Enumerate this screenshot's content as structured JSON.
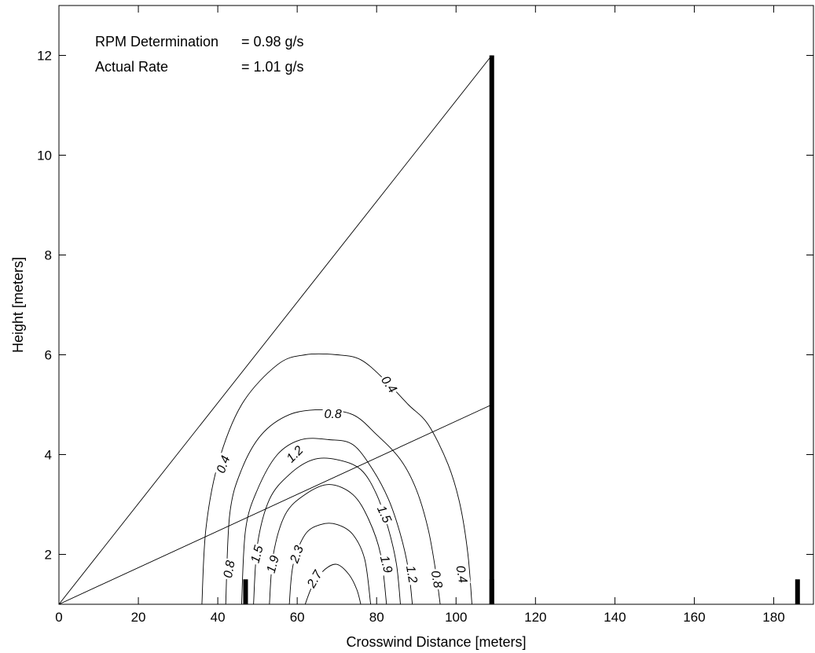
{
  "chart_data": {
    "type": "contour",
    "xlabel": "Crosswind Distance [meters]",
    "ylabel": "Height [meters]",
    "xlim": [
      0,
      190
    ],
    "ylim": [
      1,
      13
    ],
    "xticks": [
      0,
      20,
      40,
      60,
      80,
      100,
      120,
      140,
      160,
      180
    ],
    "yticks": [
      2,
      4,
      6,
      8,
      10,
      12
    ],
    "grid": false,
    "annotations": {
      "line1_label": "RPM Determination",
      "line1_value": "= 0.98 g/s",
      "line2_label": "Actual Rate",
      "line2_value": "= 1.01 g/s"
    },
    "beam_lines": [
      {
        "x": [
          0,
          109
        ],
        "y": [
          1,
          12
        ]
      },
      {
        "x": [
          0,
          109
        ],
        "y": [
          1,
          5
        ]
      }
    ],
    "towers": [
      {
        "x": 109,
        "y": [
          1,
          12
        ]
      },
      {
        "x": 47,
        "y": [
          1,
          1.5
        ]
      },
      {
        "x": 109,
        "y": [
          1,
          1.5
        ]
      },
      {
        "x": 186,
        "y": [
          1,
          1.5
        ]
      }
    ],
    "contours": [
      {
        "level": 0.4,
        "points": [
          [
            36,
            1
          ],
          [
            37,
            2.5
          ],
          [
            40,
            3.8
          ],
          [
            46,
            5.0
          ],
          [
            55,
            5.8
          ],
          [
            62,
            6.0
          ],
          [
            70,
            6.0
          ],
          [
            76,
            5.9
          ],
          [
            82,
            5.5
          ],
          [
            88,
            5.0
          ],
          [
            93,
            4.6
          ],
          [
            98,
            3.8
          ],
          [
            101,
            3.0
          ],
          [
            103,
            2.0
          ],
          [
            104,
            1
          ]
        ],
        "labels": [
          {
            "text": "0.4",
            "x": 41.5,
            "y": 3.8,
            "angle": -70
          },
          {
            "text": "0.4",
            "x": 83,
            "y": 5.4,
            "angle": 55
          },
          {
            "text": "0.4",
            "x": 101.3,
            "y": 1.6,
            "angle": 80
          }
        ]
      },
      {
        "level": 0.8,
        "points": [
          [
            42,
            1
          ],
          [
            43,
            2.8
          ],
          [
            46,
            3.7
          ],
          [
            51,
            4.4
          ],
          [
            58,
            4.8
          ],
          [
            66,
            4.9
          ],
          [
            74,
            4.8
          ],
          [
            80,
            4.4
          ],
          [
            86,
            3.9
          ],
          [
            90,
            3.3
          ],
          [
            93,
            2.5
          ],
          [
            95,
            1.6
          ],
          [
            96,
            1
          ]
        ],
        "labels": [
          {
            "text": "0.8",
            "x": 43.0,
            "y": 1.7,
            "angle": -80
          },
          {
            "text": "0.8",
            "x": 69,
            "y": 4.8,
            "angle": 0
          },
          {
            "text": "0.8",
            "x": 95.0,
            "y": 1.5,
            "angle": 80
          }
        ]
      },
      {
        "level": 1.2,
        "points": [
          [
            46,
            1
          ],
          [
            47,
            2.5
          ],
          [
            50,
            3.3
          ],
          [
            55,
            4.0
          ],
          [
            61,
            4.3
          ],
          [
            68,
            4.3
          ],
          [
            74,
            4.2
          ],
          [
            79,
            3.7
          ],
          [
            83,
            3.1
          ],
          [
            86,
            2.4
          ],
          [
            88,
            1.7
          ],
          [
            89,
            1
          ]
        ],
        "labels": [
          {
            "text": "1.2",
            "x": 59.5,
            "y": 4.0,
            "angle": -45
          },
          {
            "text": "1.2",
            "x": 88.7,
            "y": 1.6,
            "angle": 80
          }
        ]
      },
      {
        "level": 1.5,
        "points": [
          [
            49,
            1
          ],
          [
            50,
            2.2
          ],
          [
            53,
            3.1
          ],
          [
            58,
            3.6
          ],
          [
            64,
            3.9
          ],
          [
            70,
            3.9
          ],
          [
            76,
            3.7
          ],
          [
            80,
            3.2
          ],
          [
            83,
            2.5
          ],
          [
            85,
            1.8
          ],
          [
            86,
            1
          ]
        ],
        "labels": [
          {
            "text": "1.5",
            "x": 50.0,
            "y": 2.0,
            "angle": -75
          },
          {
            "text": "1.5",
            "x": 81.8,
            "y": 2.8,
            "angle": 65
          }
        ]
      },
      {
        "level": 1.9,
        "points": [
          [
            53,
            1
          ],
          [
            54,
            2.0
          ],
          [
            57,
            2.8
          ],
          [
            62,
            3.2
          ],
          [
            68,
            3.4
          ],
          [
            74,
            3.2
          ],
          [
            78,
            2.7
          ],
          [
            81,
            2.0
          ],
          [
            82.5,
            1
          ]
        ],
        "labels": [
          {
            "text": "1.9",
            "x": 54.0,
            "y": 1.8,
            "angle": -75
          },
          {
            "text": "1.9",
            "x": 82.3,
            "y": 1.8,
            "angle": 75
          }
        ]
      },
      {
        "level": 2.3,
        "points": [
          [
            58,
            1
          ],
          [
            59,
            1.8
          ],
          [
            62,
            2.4
          ],
          [
            66,
            2.6
          ],
          [
            70,
            2.6
          ],
          [
            74,
            2.4
          ],
          [
            77,
            1.9
          ],
          [
            78.5,
            1
          ]
        ],
        "labels": [
          {
            "text": "2.3",
            "x": 60.0,
            "y": 2.0,
            "angle": -70
          }
        ]
      },
      {
        "level": 2.7,
        "points": [
          [
            62,
            1
          ],
          [
            64,
            1.4
          ],
          [
            67,
            1.7
          ],
          [
            70,
            1.8
          ],
          [
            73,
            1.6
          ],
          [
            75,
            1.3
          ],
          [
            76,
            1
          ]
        ],
        "labels": [
          {
            "text": "2.7",
            "x": 64.5,
            "y": 1.5,
            "angle": -60
          }
        ]
      }
    ]
  }
}
